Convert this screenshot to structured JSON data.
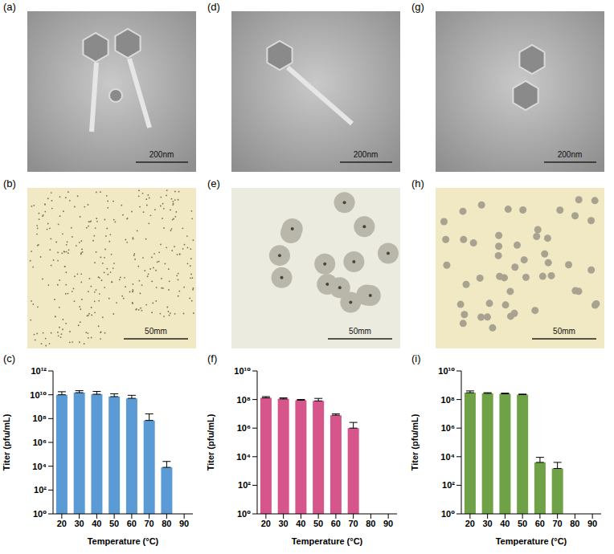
{
  "figure": {
    "panel_labels": [
      "(a)",
      "(b)",
      "(c)",
      "(d)",
      "(e)",
      "(f)",
      "(g)",
      "(h)",
      "(i)"
    ],
    "tem_scale_bars": [
      "200nm",
      "200nm",
      "200nm"
    ],
    "plaque_scale_bars": [
      "50mm",
      "50mm",
      "50mm"
    ]
  },
  "chart_data": [
    {
      "type": "bar",
      "x_label": "Temperature (°C)",
      "y_label": "Titer (pfu/mL)",
      "categories": [
        "20",
        "30",
        "40",
        "50",
        "60",
        "70",
        "80",
        "90"
      ],
      "values": [
        10000000000,
        15000000000,
        11000000000,
        7000000000,
        5000000000,
        70000000,
        8000,
        null
      ],
      "errors": [
        8000000000,
        7000000000,
        8000000000,
        5000000000,
        4000000000,
        180000000,
        17000,
        null
      ],
      "color": "#5b9bd5",
      "log": "y",
      "grid": false,
      "ylim": [
        1,
        1000000000000
      ],
      "yticks": [
        {
          "value": 1,
          "label": "10⁰"
        },
        {
          "value": 100,
          "label": "10²"
        },
        {
          "value": 10000,
          "label": "10⁴"
        },
        {
          "value": 1000000,
          "label": "10⁶"
        },
        {
          "value": 100000000,
          "label": "10⁸"
        },
        {
          "value": 10000000000,
          "label": "10¹⁰"
        },
        {
          "value": 1000000000000,
          "label": "10¹²"
        }
      ]
    },
    {
      "type": "bar",
      "x_label": "Temperature (°C)",
      "y_label": "Titer (pfu/mL)",
      "categories": [
        "20",
        "30",
        "40",
        "50",
        "60",
        "70",
        "80",
        "90"
      ],
      "values": [
        130000000,
        110000000,
        90000000,
        80000000,
        8000000,
        1000000,
        null,
        null
      ],
      "errors": [
        30000000,
        20000000,
        10000000,
        40000000,
        2000000,
        1500000,
        null,
        null
      ],
      "color": "#d6558b",
      "log": "y",
      "grid": false,
      "ylim": [
        1,
        10000000000
      ],
      "yticks": [
        {
          "value": 1,
          "label": "10⁰"
        },
        {
          "value": 100,
          "label": "10²"
        },
        {
          "value": 10000,
          "label": "10⁴"
        },
        {
          "value": 1000000,
          "label": "10⁶"
        },
        {
          "value": 100000000,
          "label": "10⁸"
        },
        {
          "value": 10000000000,
          "label": "10¹⁰"
        }
      ]
    },
    {
      "type": "bar",
      "x_label": "Temperature (°C)",
      "y_label": "Titer (pfu/mL)",
      "categories": [
        "20",
        "30",
        "40",
        "50",
        "60",
        "70",
        "80",
        "90"
      ],
      "values": [
        300000000,
        270000000,
        250000000,
        220000000,
        4000,
        1500,
        null,
        null
      ],
      "errors": [
        100000000,
        30000000,
        30000000,
        20000000,
        5000,
        2500,
        null,
        null
      ],
      "color": "#6fa247",
      "log": "y",
      "grid": false,
      "ylim": [
        1,
        10000000000
      ],
      "yticks": [
        {
          "value": 1,
          "label": "10⁰"
        },
        {
          "value": 100,
          "label": "10²"
        },
        {
          "value": 10000,
          "label": "10⁴"
        },
        {
          "value": 1000000,
          "label": "10⁶"
        },
        {
          "value": 100000000,
          "label": "10⁸"
        },
        {
          "value": 10000000000,
          "label": "10¹⁰"
        }
      ]
    }
  ]
}
